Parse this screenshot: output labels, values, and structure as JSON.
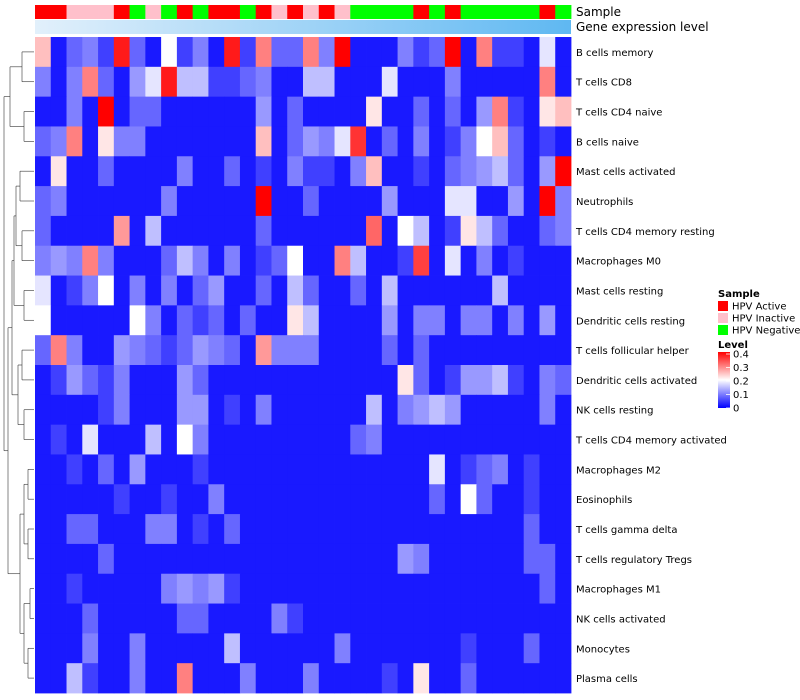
{
  "chart_data": {
    "type": "heatmap",
    "annotation_labels": [
      "Sample",
      "Gene expression level"
    ],
    "rows": [
      "B cells memory",
      "T cells CD8",
      "T cells CD4 naive",
      "B cells naive",
      "Mast cells activated",
      "Neutrophils",
      "T cells CD4 memory resting",
      "Macrophages M0",
      "Mast cells resting",
      "Dendritic cells resting",
      "T cells follicular helper",
      "Dendritic cells activated",
      "NK cells resting",
      "T cells CD4 memory activated",
      "Macrophages M2",
      "Eosinophils",
      "T cells gamma delta",
      "T cells regulatory  Tregs",
      "Macrophages M1",
      "NK cells activated",
      "Monocytes",
      "Plasma cells"
    ],
    "sample_groups": [
      "A",
      "A",
      "I",
      "I",
      "I",
      "A",
      "N",
      "I",
      "N",
      "A",
      "N",
      "A",
      "A",
      "N",
      "A",
      "I",
      "A",
      "I",
      "A",
      "I",
      "N",
      "N",
      "N",
      "N",
      "A",
      "N",
      "A",
      "N",
      "N",
      "N",
      "N",
      "N",
      "A",
      "N"
    ],
    "sample_colors": {
      "A": "#ff0000",
      "I": "#ffc0cb",
      "N": "#00ff00"
    },
    "legend": {
      "sample": {
        "title": "Sample",
        "entries": [
          {
            "key": "A",
            "label": "HPV Active"
          },
          {
            "key": "I",
            "label": "HPV Inactive"
          },
          {
            "key": "N",
            "label": "HPV Negative"
          }
        ]
      },
      "level": {
        "title": "Level",
        "ticks": [
          0.4,
          0.3,
          0.2,
          0.1,
          0
        ],
        "range": [
          0,
          0.4
        ],
        "colors": [
          "#0000ff",
          "#ffffff",
          "#ff0000"
        ]
      }
    },
    "values": [
      [
        0.25,
        0.02,
        0.08,
        0.1,
        0.05,
        0.38,
        0.08,
        0.02,
        0.2,
        0.05,
        0.1,
        0.02,
        0.38,
        0.05,
        0.3,
        0.08,
        0.08,
        0.3,
        0.1,
        0.4,
        0.02,
        0.02,
        0.02,
        0.1,
        0.05,
        0.08,
        0.4,
        0.02,
        0.3,
        0.05,
        0.05,
        0.02,
        0.18,
        0.02
      ],
      [
        0.1,
        0.02,
        0.1,
        0.3,
        0.08,
        0.02,
        0.12,
        0.18,
        0.38,
        0.15,
        0.15,
        0.05,
        0.05,
        0.08,
        0.1,
        0.02,
        0.02,
        0.15,
        0.15,
        0.02,
        0.02,
        0.02,
        0.18,
        0.02,
        0.02,
        0.02,
        0.1,
        0.02,
        0.02,
        0.02,
        0.02,
        0.02,
        0.3,
        0.02
      ],
      [
        0.02,
        0.02,
        0.1,
        0.02,
        0.4,
        0.02,
        0.08,
        0.08,
        0.02,
        0.02,
        0.02,
        0.02,
        0.02,
        0.02,
        0.12,
        0.02,
        0.08,
        0.02,
        0.02,
        0.02,
        0.02,
        0.22,
        0.02,
        0.02,
        0.08,
        0.02,
        0.08,
        0.02,
        0.12,
        0.3,
        0.05,
        0.02,
        0.22,
        0.25
      ],
      [
        0.08,
        0.1,
        0.3,
        0.02,
        0.22,
        0.1,
        0.1,
        0.02,
        0.02,
        0.02,
        0.02,
        0.02,
        0.02,
        0.02,
        0.25,
        0.02,
        0.08,
        0.12,
        0.1,
        0.18,
        0.36,
        0.02,
        0.08,
        0.02,
        0.1,
        0.02,
        0.05,
        0.1,
        0.2,
        0.25,
        0.08,
        0.02,
        0.05,
        0.02
      ],
      [
        0.02,
        0.22,
        0.02,
        0.02,
        0.08,
        0.02,
        0.02,
        0.02,
        0.02,
        0.1,
        0.02,
        0.02,
        0.08,
        0.02,
        0.05,
        0.02,
        0.1,
        0.05,
        0.05,
        0.02,
        0.1,
        0.25,
        0.02,
        0.02,
        0.05,
        0.02,
        0.08,
        0.1,
        0.12,
        0.15,
        0.08,
        0.02,
        0.12,
        0.4
      ],
      [
        0.08,
        0.1,
        0.02,
        0.02,
        0.02,
        0.02,
        0.02,
        0.02,
        0.1,
        0.02,
        0.02,
        0.02,
        0.02,
        0.02,
        0.4,
        0.02,
        0.02,
        0.08,
        0.02,
        0.02,
        0.02,
        0.02,
        0.12,
        0.02,
        0.02,
        0.02,
        0.18,
        0.18,
        0.02,
        0.02,
        0.12,
        0.02,
        0.4,
        0.1
      ],
      [
        0.08,
        0.02,
        0.02,
        0.02,
        0.02,
        0.28,
        0.02,
        0.15,
        0.02,
        0.02,
        0.02,
        0.02,
        0.02,
        0.02,
        0.08,
        0.02,
        0.02,
        0.02,
        0.02,
        0.02,
        0.02,
        0.32,
        0.02,
        0.2,
        0.15,
        0.02,
        0.05,
        0.22,
        0.15,
        0.08,
        0.02,
        0.02,
        0.08,
        0.1
      ],
      [
        0.1,
        0.12,
        0.1,
        0.3,
        0.1,
        0.02,
        0.02,
        0.02,
        0.08,
        0.15,
        0.1,
        0.02,
        0.1,
        0.02,
        0.05,
        0.08,
        0.2,
        0.02,
        0.02,
        0.3,
        0.15,
        0.02,
        0.02,
        0.05,
        0.35,
        0.02,
        0.18,
        0.02,
        0.1,
        0.02,
        0.05,
        0.02,
        0.02,
        0.02
      ],
      [
        0.18,
        0.02,
        0.05,
        0.1,
        0.2,
        0.02,
        0.1,
        0.02,
        0.1,
        0.02,
        0.08,
        0.12,
        0.02,
        0.02,
        0.08,
        0.02,
        0.15,
        0.08,
        0.02,
        0.02,
        0.08,
        0.02,
        0.15,
        0.02,
        0.02,
        0.02,
        0.02,
        0.02,
        0.02,
        0.15,
        0.02,
        0.02,
        0.02,
        0.02
      ],
      [
        0.2,
        0.02,
        0.02,
        0.02,
        0.02,
        0.02,
        0.2,
        0.1,
        0.02,
        0.08,
        0.05,
        0.08,
        0.02,
        0.08,
        0.02,
        0.02,
        0.22,
        0.15,
        0.02,
        0.02,
        0.02,
        0.02,
        0.12,
        0.02,
        0.1,
        0.1,
        0.02,
        0.1,
        0.1,
        0.02,
        0.1,
        0.02,
        0.12,
        0.02
      ],
      [
        0.08,
        0.3,
        0.1,
        0.02,
        0.02,
        0.12,
        0.1,
        0.08,
        0.05,
        0.08,
        0.12,
        0.1,
        0.08,
        0.02,
        0.28,
        0.1,
        0.1,
        0.1,
        0.02,
        0.02,
        0.02,
        0.02,
        0.08,
        0.02,
        0.08,
        0.02,
        0.02,
        0.02,
        0.02,
        0.02,
        0.02,
        0.02,
        0.02,
        0.02
      ],
      [
        0.02,
        0.05,
        0.12,
        0.08,
        0.05,
        0.1,
        0.02,
        0.02,
        0.02,
        0.12,
        0.08,
        0.02,
        0.02,
        0.02,
        0.02,
        0.02,
        0.02,
        0.02,
        0.02,
        0.02,
        0.02,
        0.02,
        0.02,
        0.22,
        0.08,
        0.02,
        0.05,
        0.12,
        0.12,
        0.15,
        0.05,
        0.02,
        0.1,
        0.08
      ],
      [
        0.02,
        0.02,
        0.02,
        0.02,
        0.05,
        0.1,
        0.02,
        0.02,
        0.02,
        0.12,
        0.12,
        0.02,
        0.05,
        0.02,
        0.1,
        0.02,
        0.02,
        0.02,
        0.02,
        0.02,
        0.02,
        0.15,
        0.02,
        0.1,
        0.12,
        0.15,
        0.12,
        0.02,
        0.02,
        0.02,
        0.02,
        0.02,
        0.1,
        0.02
      ],
      [
        0.02,
        0.05,
        0.02,
        0.18,
        0.02,
        0.02,
        0.02,
        0.15,
        0.02,
        0.2,
        0.1,
        0.02,
        0.02,
        0.02,
        0.02,
        0.02,
        0.02,
        0.02,
        0.02,
        0.02,
        0.08,
        0.1,
        0.02,
        0.02,
        0.02,
        0.02,
        0.02,
        0.02,
        0.02,
        0.02,
        0.02,
        0.02,
        0.02,
        0.02
      ],
      [
        0.02,
        0.02,
        0.05,
        0.02,
        0.08,
        0.02,
        0.12,
        0.02,
        0.02,
        0.02,
        0.05,
        0.02,
        0.02,
        0.02,
        0.02,
        0.02,
        0.02,
        0.02,
        0.02,
        0.02,
        0.02,
        0.02,
        0.02,
        0.02,
        0.02,
        0.18,
        0.02,
        0.05,
        0.08,
        0.1,
        0.02,
        0.05,
        0.02,
        0.02
      ],
      [
        0.02,
        0.02,
        0.02,
        0.02,
        0.02,
        0.05,
        0.02,
        0.02,
        0.05,
        0.02,
        0.02,
        0.1,
        0.02,
        0.02,
        0.02,
        0.02,
        0.02,
        0.02,
        0.02,
        0.02,
        0.02,
        0.02,
        0.02,
        0.02,
        0.02,
        0.08,
        0.02,
        0.2,
        0.08,
        0.02,
        0.02,
        0.05,
        0.02,
        0.02
      ],
      [
        0.02,
        0.02,
        0.08,
        0.08,
        0.02,
        0.02,
        0.02,
        0.1,
        0.1,
        0.02,
        0.05,
        0.02,
        0.08,
        0.02,
        0.02,
        0.02,
        0.02,
        0.02,
        0.02,
        0.02,
        0.02,
        0.02,
        0.02,
        0.02,
        0.02,
        0.02,
        0.02,
        0.02,
        0.02,
        0.02,
        0.02,
        0.08,
        0.02,
        0.02
      ],
      [
        0.02,
        0.02,
        0.02,
        0.02,
        0.08,
        0.02,
        0.02,
        0.02,
        0.02,
        0.02,
        0.02,
        0.02,
        0.02,
        0.02,
        0.02,
        0.02,
        0.02,
        0.02,
        0.02,
        0.02,
        0.02,
        0.02,
        0.02,
        0.12,
        0.1,
        0.02,
        0.02,
        0.02,
        0.02,
        0.02,
        0.02,
        0.08,
        0.08,
        0.02
      ],
      [
        0.02,
        0.02,
        0.05,
        0.02,
        0.02,
        0.02,
        0.02,
        0.02,
        0.1,
        0.12,
        0.1,
        0.12,
        0.05,
        0.02,
        0.02,
        0.02,
        0.02,
        0.02,
        0.02,
        0.02,
        0.02,
        0.02,
        0.02,
        0.02,
        0.02,
        0.02,
        0.02,
        0.02,
        0.02,
        0.02,
        0.02,
        0.02,
        0.08,
        0.02
      ],
      [
        0.02,
        0.02,
        0.02,
        0.08,
        0.02,
        0.02,
        0.02,
        0.02,
        0.02,
        0.08,
        0.08,
        0.02,
        0.02,
        0.02,
        0.02,
        0.1,
        0.05,
        0.02,
        0.02,
        0.02,
        0.02,
        0.02,
        0.02,
        0.02,
        0.02,
        0.02,
        0.02,
        0.02,
        0.02,
        0.02,
        0.02,
        0.02,
        0.02,
        0.02
      ],
      [
        0.02,
        0.02,
        0.02,
        0.1,
        0.02,
        0.02,
        0.1,
        0.02,
        0.02,
        0.02,
        0.02,
        0.02,
        0.15,
        0.02,
        0.02,
        0.02,
        0.02,
        0.02,
        0.02,
        0.1,
        0.02,
        0.02,
        0.02,
        0.02,
        0.02,
        0.02,
        0.02,
        0.05,
        0.02,
        0.02,
        0.02,
        0.08,
        0.02,
        0.02
      ],
      [
        0.02,
        0.02,
        0.15,
        0.05,
        0.02,
        0.02,
        0.1,
        0.02,
        0.02,
        0.3,
        0.02,
        0.02,
        0.02,
        0.1,
        0.02,
        0.02,
        0.02,
        0.1,
        0.02,
        0.02,
        0.02,
        0.02,
        0.05,
        0.02,
        0.22,
        0.02,
        0.02,
        0.08,
        0.02,
        0.02,
        0.02,
        0.02,
        0.02,
        0.02
      ]
    ]
  }
}
